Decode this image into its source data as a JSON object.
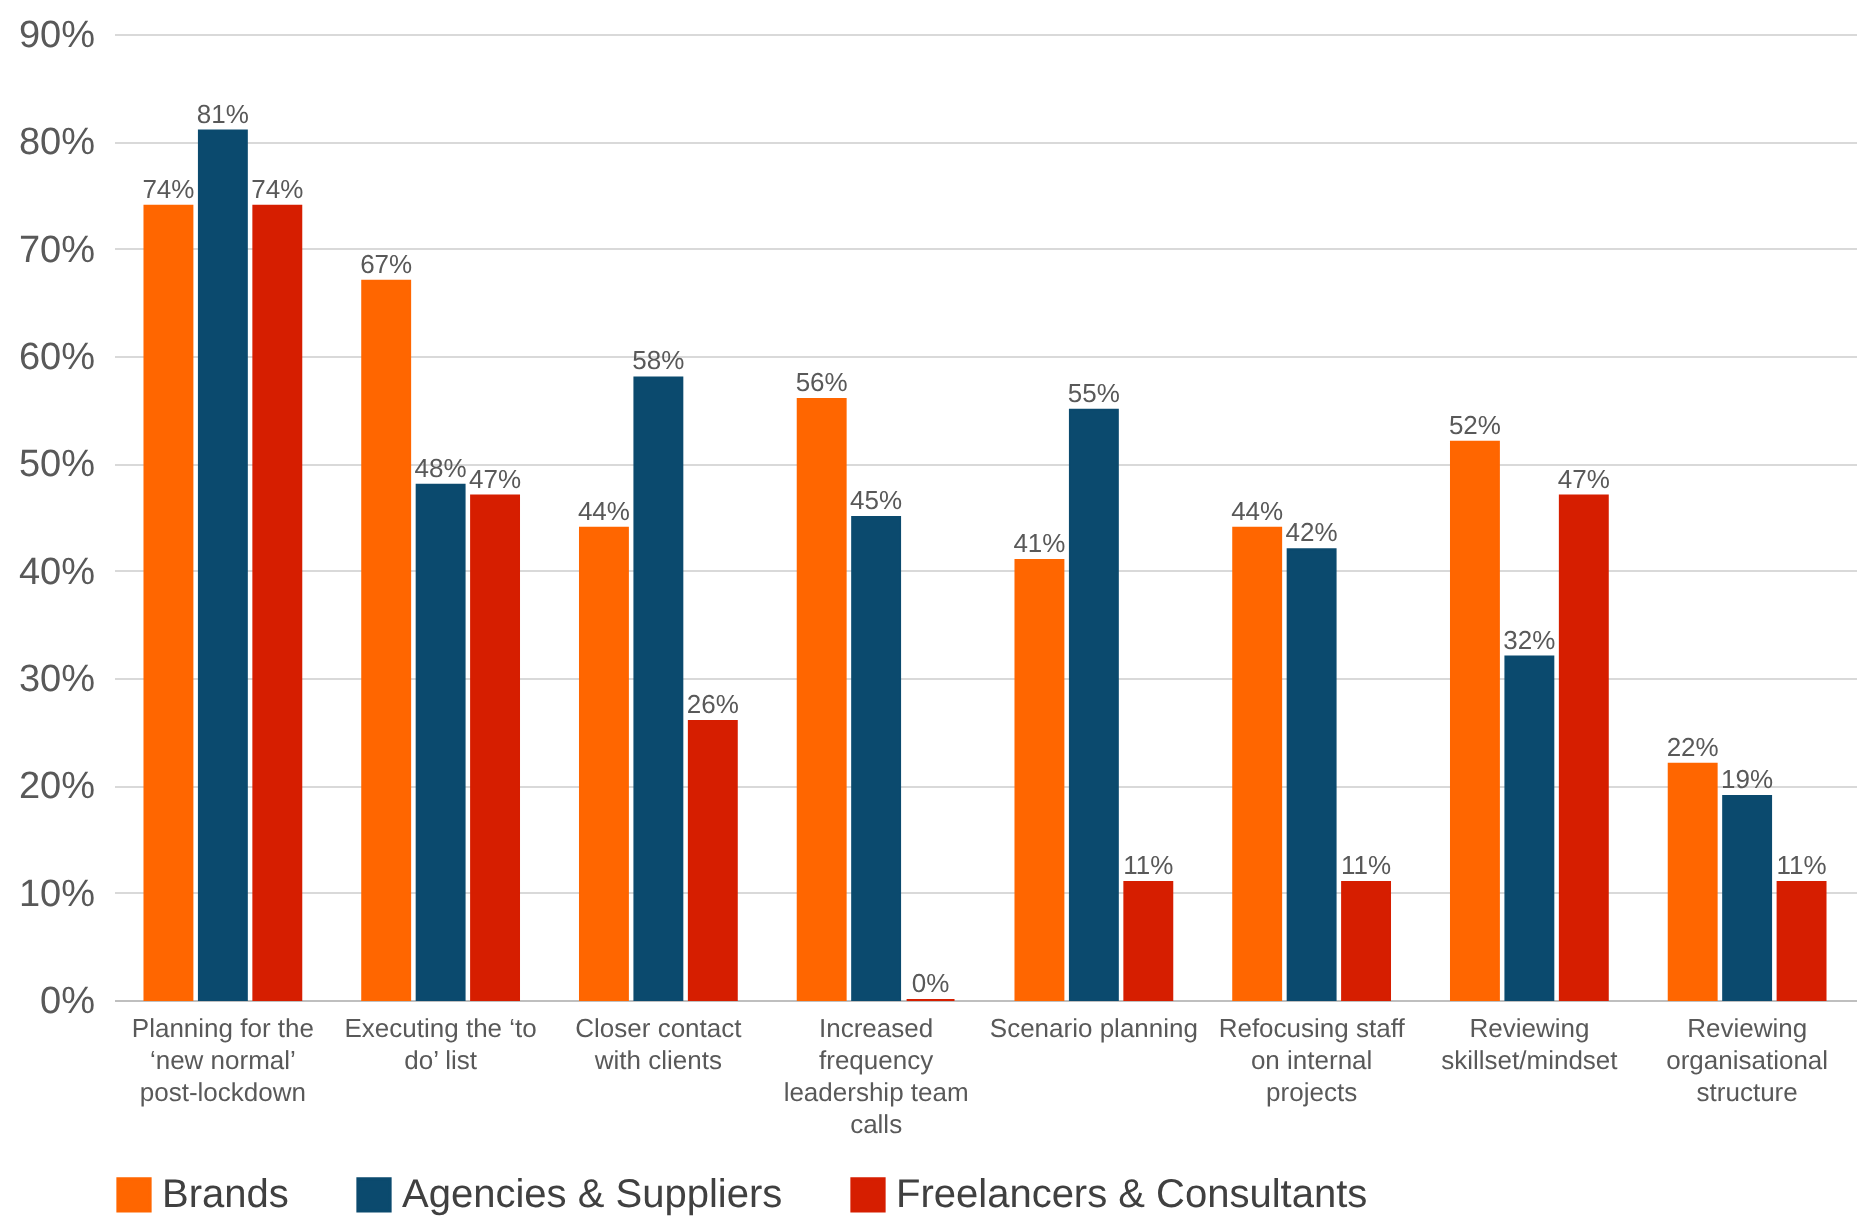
{
  "chart_data": {
    "type": "bar",
    "categories": [
      "Planning for the ‘new normal’ post-lockdown",
      "Executing the ‘to do’ list",
      "Closer contact with clients",
      "Increased frequency leadership team calls",
      "Scenario planning",
      "Refocusing staff on internal projects",
      "Reviewing skillset/mindset",
      "Reviewing organisational structure"
    ],
    "series": [
      {
        "name": "Brands",
        "color": "#ff6600",
        "values": [
          74,
          67,
          44,
          56,
          41,
          44,
          52,
          22
        ],
        "value_labels": [
          "74%",
          "67%",
          "44%",
          "56%",
          "41%",
          "44%",
          "52%",
          "22%"
        ]
      },
      {
        "name": "Agencies & Suppliers",
        "color": "#0b4a6e",
        "values": [
          81,
          48,
          58,
          45,
          55,
          42,
          32,
          19
        ],
        "value_labels": [
          "81%",
          "48%",
          "58%",
          "45%",
          "55%",
          "42%",
          "32%",
          "19%"
        ]
      },
      {
        "name": "Freelancers & Consultants",
        "color": "#d61e00",
        "values": [
          74,
          47,
          26,
          0,
          11,
          11,
          47,
          11
        ],
        "value_labels": [
          "74%",
          "47%",
          "26%",
          "0%",
          "11%",
          "11%",
          "47%",
          "11%"
        ]
      }
    ],
    "ylim": [
      0,
      90
    ],
    "yticks": [
      {
        "value": 0,
        "label": "0%"
      },
      {
        "value": 10,
        "label": "10%"
      },
      {
        "value": 20,
        "label": "20%"
      },
      {
        "value": 30,
        "label": "30%"
      },
      {
        "value": 40,
        "label": "40%"
      },
      {
        "value": 50,
        "label": "50%"
      },
      {
        "value": 60,
        "label": "60%"
      },
      {
        "value": 70,
        "label": "70%"
      },
      {
        "value": 80,
        "label": "80%"
      },
      {
        "value": 90,
        "label": "90%"
      }
    ],
    "grid": "y",
    "legend": "bottom"
  }
}
